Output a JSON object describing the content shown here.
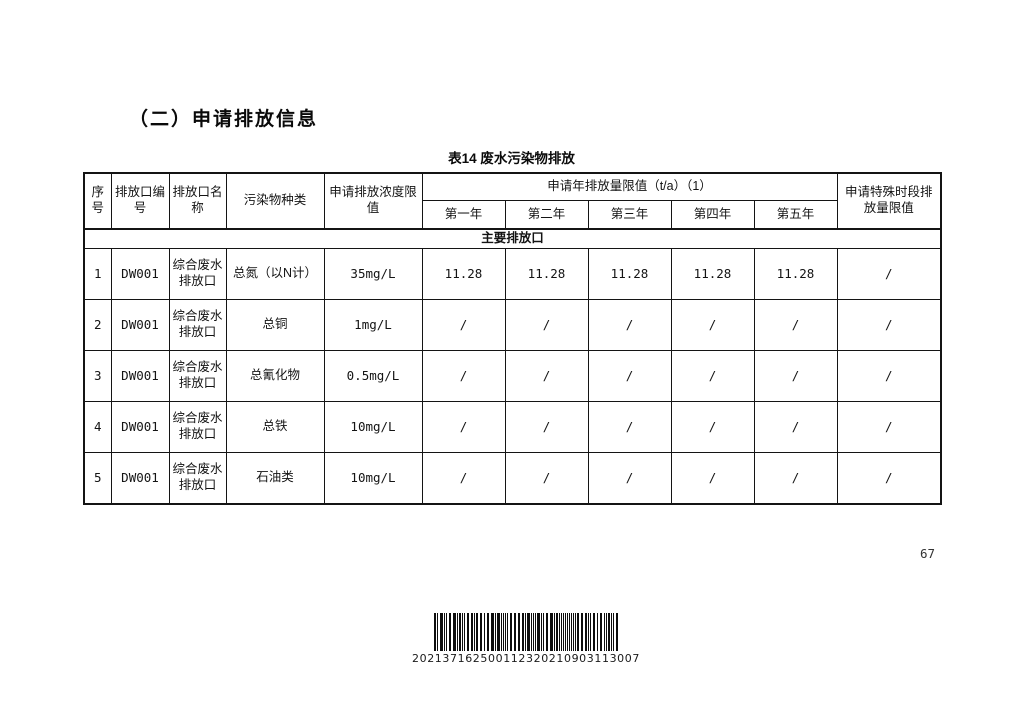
{
  "page": {
    "section_title": "（二）申请排放信息",
    "page_number": "67"
  },
  "table": {
    "title": "表14 废水污染物排放",
    "headers": {
      "seq": "序号",
      "outlet_no": "排放口编号",
      "outlet_name": "排放口名称",
      "pollutant": "污染物种类",
      "concentration": "申请排放浓度限值",
      "annual_group": "申请年排放量限值（t/a）（1）",
      "years": [
        "第一年",
        "第二年",
        "第三年",
        "第四年",
        "第五年"
      ],
      "special": "申请特殊时段排放量限值"
    },
    "section_row_label": "主要排放口",
    "rows": [
      {
        "seq": "1",
        "outlet_no": "DW001",
        "outlet_name": "综合废水排放口",
        "pollutant": "总氮（以N计）",
        "concentration": "35mg/L",
        "years": [
          "11.28",
          "11.28",
          "11.28",
          "11.28",
          "11.28"
        ],
        "special": "/"
      },
      {
        "seq": "2",
        "outlet_no": "DW001",
        "outlet_name": "综合废水排放口",
        "pollutant": "总铜",
        "concentration": "1mg/L",
        "years": [
          "/",
          "/",
          "/",
          "/",
          "/"
        ],
        "special": "/"
      },
      {
        "seq": "3",
        "outlet_no": "DW001",
        "outlet_name": "综合废水排放口",
        "pollutant": "总氰化物",
        "concentration": "0.5mg/L",
        "years": [
          "/",
          "/",
          "/",
          "/",
          "/"
        ],
        "special": "/"
      },
      {
        "seq": "4",
        "outlet_no": "DW001",
        "outlet_name": "综合废水排放口",
        "pollutant": "总铁",
        "concentration": "10mg/L",
        "years": [
          "/",
          "/",
          "/",
          "/",
          "/"
        ],
        "special": "/"
      },
      {
        "seq": "5",
        "outlet_no": "DW001",
        "outlet_name": "综合废水排放口",
        "pollutant": "石油类",
        "concentration": "10mg/L",
        "years": [
          "/",
          "/",
          "/",
          "/",
          "/"
        ],
        "special": "/"
      }
    ]
  },
  "barcode": {
    "value": "202137162500112320210903113007"
  }
}
